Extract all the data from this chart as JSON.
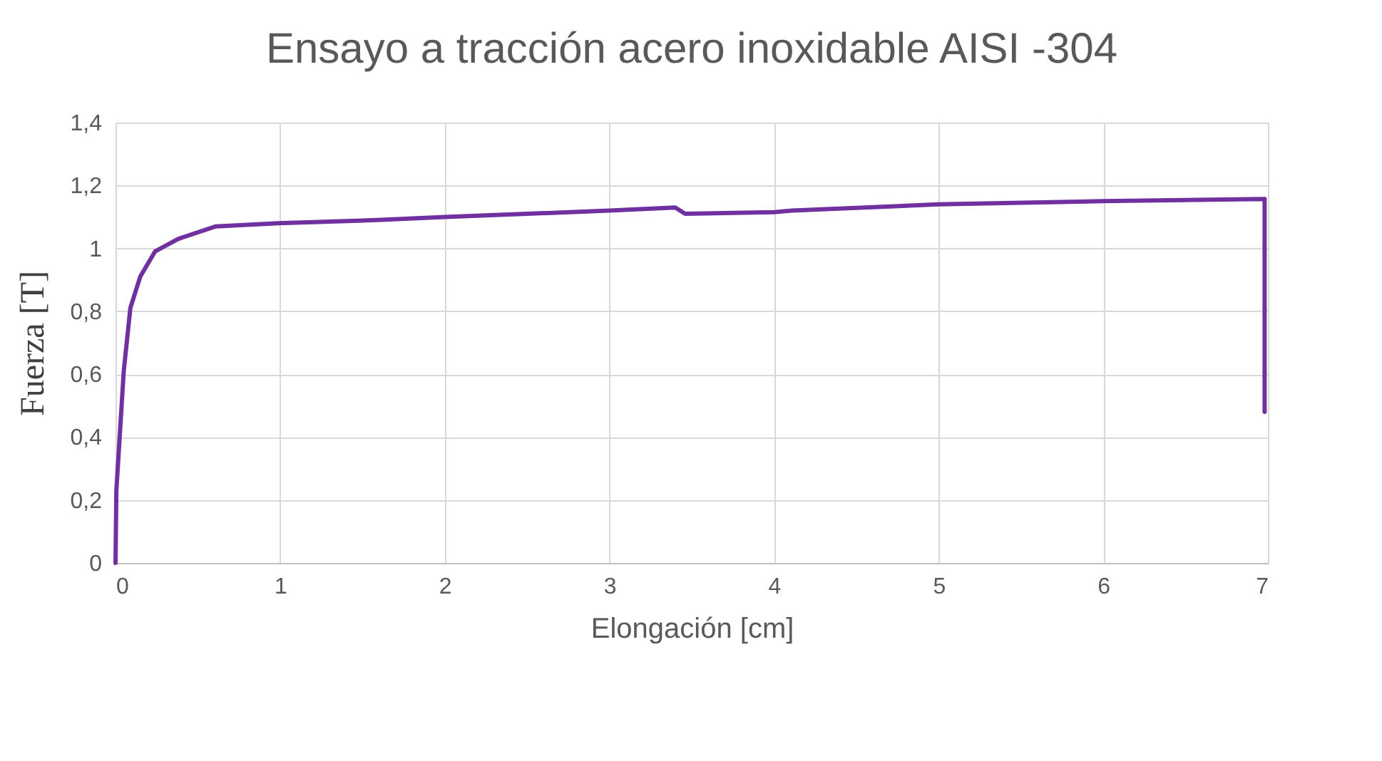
{
  "chart_data": {
    "type": "line",
    "title": "Ensayo a tracción acero inoxidable AISI -304",
    "xlabel": "Elongación [cm]",
    "ylabel": "Fuerza [T]",
    "series": [
      {
        "color": "#7030a0",
        "x": [
          0,
          0.005,
          0.05,
          0.09,
          0.15,
          0.24,
          0.38,
          0.61,
          0.99,
          1.59,
          2.0,
          2.5,
          3.0,
          3.4,
          3.46,
          4.0,
          4.11,
          5.0,
          6.0,
          6.98,
          6.98
        ],
        "values": [
          0,
          0.23,
          0.61,
          0.81,
          0.91,
          0.99,
          1.03,
          1.07,
          1.08,
          1.09,
          1.1,
          1.11,
          1.12,
          1.13,
          1.11,
          1.115,
          1.12,
          1.14,
          1.15,
          1.157,
          0.48
        ]
      }
    ],
    "xlim": [
      0,
      7
    ],
    "xticks": [
      0,
      1,
      2,
      3,
      4,
      5,
      6,
      7
    ],
    "ylim": [
      0,
      1.4
    ],
    "yticks": [
      0,
      {
        "value": 0.2,
        "label": "0,2"
      },
      {
        "value": 0.4,
        "label": "0,4"
      },
      {
        "value": 0.6,
        "label": "0,6"
      },
      {
        "value": 0.8,
        "label": "0,8"
      },
      1,
      {
        "value": 1.2,
        "label": "1,2"
      },
      {
        "value": 1.4,
        "label": "1,4"
      }
    ],
    "grid": true,
    "legend": false,
    "line_style": "solid",
    "marker": "none"
  }
}
